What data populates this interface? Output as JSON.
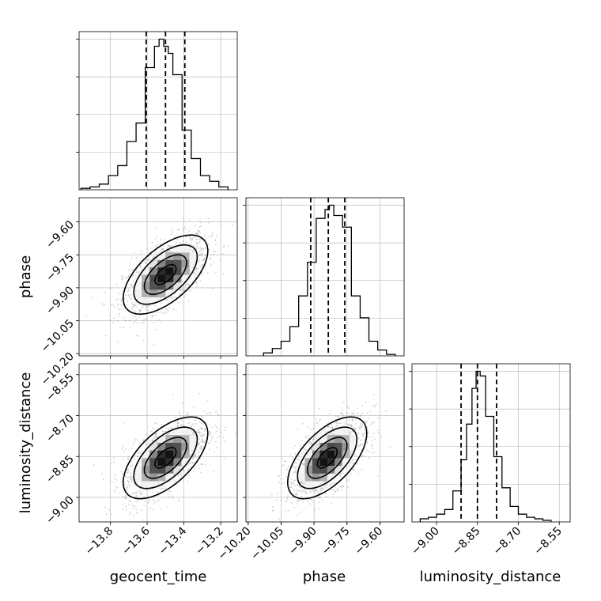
{
  "chart_data": {
    "type": "corner",
    "parameters": [
      {
        "name": "geocent_time",
        "range": [
          -13.97,
          -13.11
        ],
        "ticks": [
          -13.8,
          -13.6,
          -13.4,
          -13.2
        ],
        "tick_labels": [
          "−13.8",
          "−13.6",
          "−13.4",
          "−13.2"
        ],
        "quantiles": [
          -13.605,
          -13.5,
          -13.395
        ],
        "hist_edges": [
          -13.96,
          -13.91,
          -13.86,
          -13.81,
          -13.76,
          -13.71,
          -13.66,
          -13.61,
          -13.56,
          -13.535,
          -13.51,
          -13.485,
          -13.46,
          -13.41,
          -13.36,
          -13.31,
          -13.26,
          -13.21,
          -13.16
        ],
        "hist_counts": [
          1,
          2,
          4,
          10,
          17,
          34,
          47,
          86,
          101,
          106,
          101,
          96,
          81,
          42,
          22,
          10,
          6,
          2
        ]
      },
      {
        "name": "phase",
        "range": [
          -10.21,
          -9.49
        ],
        "ticks": [
          -10.2,
          -10.05,
          -9.9,
          -9.75,
          -9.6
        ],
        "tick_labels": [
          "−10.20",
          "−10.05",
          "−9.90",
          "−9.75",
          "−9.60"
        ],
        "quantiles": [
          -9.915,
          -9.835,
          -9.76
        ],
        "hist_edges": [
          -10.13,
          -10.09,
          -10.05,
          -10.01,
          -9.97,
          -9.93,
          -9.89,
          -9.85,
          -9.83,
          -9.81,
          -9.77,
          -9.73,
          -9.69,
          -9.65,
          -9.61,
          -9.57,
          -9.53
        ],
        "hist_counts": [
          2,
          5,
          10,
          20,
          41,
          64,
          94,
          100,
          103,
          96,
          88,
          41,
          26,
          10,
          4,
          1
        ]
      },
      {
        "name": "luminosity_distance",
        "range": [
          -9.09,
          -8.51
        ],
        "ticks": [
          -9.0,
          -8.85,
          -8.7,
          -8.55
        ],
        "tick_labels": [
          "−9.00",
          "−8.85",
          "−8.70",
          "−8.55"
        ],
        "quantiles": [
          -8.91,
          -8.85,
          -8.78
        ],
        "hist_edges": [
          -9.06,
          -9.03,
          -9.0,
          -8.97,
          -8.94,
          -8.91,
          -8.89,
          -8.87,
          -8.855,
          -8.84,
          -8.82,
          -8.79,
          -8.76,
          -8.73,
          -8.7,
          -8.67,
          -8.64,
          -8.61,
          -8.58
        ],
        "hist_counts": [
          2,
          3,
          5,
          8,
          20,
          40,
          63,
          86,
          97,
          94,
          68,
          42,
          22,
          10,
          5,
          3,
          2,
          1
        ]
      }
    ],
    "pairs": [
      {
        "x": "geocent_time",
        "y": "phase",
        "center": [
          -13.5,
          -9.84
        ],
        "sd": [
          0.115,
          0.09
        ],
        "rho": 0.6
      },
      {
        "x": "geocent_time",
        "y": "luminosity_distance",
        "center": [
          -13.5,
          -8.855
        ],
        "sd": [
          0.115,
          0.075
        ],
        "rho": 0.6
      },
      {
        "x": "phase",
        "y": "luminosity_distance",
        "center": [
          -9.84,
          -8.855
        ],
        "sd": [
          0.09,
          0.075
        ],
        "rho": 0.6
      }
    ],
    "axis_labels": {
      "x": [
        "geocent_time",
        "phase",
        "luminosity_distance"
      ],
      "y": [
        "phase",
        "luminosity_distance"
      ]
    },
    "grid": true,
    "colors": {
      "line": "#000000",
      "grid": "#b0b0b0",
      "points": "#999999"
    }
  }
}
